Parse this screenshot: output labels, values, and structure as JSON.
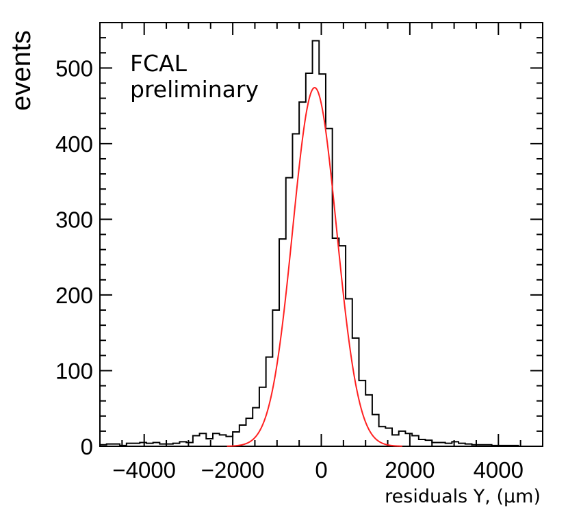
{
  "chart_data": {
    "type": "histogram",
    "title": "",
    "xlabel": "residuals Y, (μm)",
    "ylabel": "events",
    "xlim": [
      -5000,
      5000
    ],
    "ylim": [
      0,
      560
    ],
    "grid": false,
    "x_ticks": [
      -4000,
      -2000,
      0,
      2000,
      4000
    ],
    "x_tick_labels": [
      "−4000",
      "−2000",
      "0",
      "2000",
      "4000"
    ],
    "y_ticks": [
      0,
      100,
      200,
      300,
      400,
      500
    ],
    "y_tick_labels": [
      "0",
      "100",
      "200",
      "300",
      "400",
      "500"
    ],
    "annotations": [
      "FCAL",
      "preliminary"
    ],
    "bin_width": 150,
    "series": [
      {
        "name": "residuals histogram",
        "color": "#000000",
        "bin_lo": -5000,
        "values": [
          2,
          3,
          3,
          1,
          4,
          4,
          5,
          4,
          5,
          3,
          3,
          4,
          6,
          5,
          14,
          17,
          10,
          17,
          15,
          13,
          19,
          28,
          37,
          51,
          78,
          118,
          180,
          274,
          355,
          413,
          455,
          493,
          536,
          492,
          420,
          275,
          265,
          195,
          143,
          87,
          68,
          42,
          26,
          24,
          15,
          20,
          17,
          14,
          9,
          8,
          5,
          5,
          4,
          6,
          4,
          3,
          2,
          2,
          2,
          1,
          1,
          1,
          1,
          0,
          0,
          0
        ]
      },
      {
        "name": "gaussian fit",
        "color": "#ff2020",
        "function": "gaussian",
        "amplitude": 474,
        "mean": -150,
        "sigma": 495
      }
    ]
  }
}
